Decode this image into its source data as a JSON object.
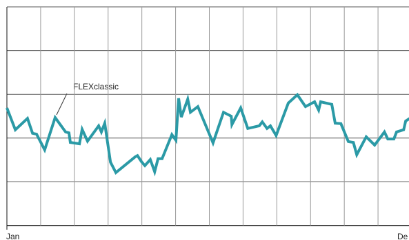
{
  "chart_data": {
    "type": "line",
    "annotation": "FLEXclassic",
    "x_end_labels": [
      "Jan",
      "De"
    ],
    "xlim": [
      0,
      12
    ],
    "xticks": [
      0,
      1,
      2,
      3,
      4,
      5,
      6,
      7,
      8,
      9,
      10,
      11,
      12
    ],
    "ylim": [
      0,
      5
    ],
    "yticks": [
      0,
      1,
      2,
      3,
      4,
      5
    ],
    "grid": true,
    "color": "#2b9aa6",
    "x": [
      0,
      0.25,
      0.61,
      0.76,
      0.88,
      1.12,
      1.43,
      1.74,
      1.84,
      1.88,
      2.15,
      2.23,
      2.39,
      2.72,
      2.8,
      2.9,
      3.07,
      3.23,
      3.8,
      3.87,
      3.99,
      4.09,
      4.25,
      4.38,
      4.48,
      4.6,
      4.89,
      5.01,
      5.09,
      5.17,
      5.36,
      5.44,
      5.66,
      6.11,
      6.42,
      6.65,
      6.67,
      6.93,
      7.14,
      7.48,
      7.57,
      7.71,
      7.81,
      7.98,
      8.34,
      8.61,
      8.85,
      9.12,
      9.24,
      9.3,
      9.63,
      9.73,
      9.9,
      10.12,
      10.27,
      10.37,
      10.65,
      10.9,
      11.19,
      11.29,
      11.47,
      11.55,
      11.76,
      11.82,
      11.94
    ],
    "values": [
      2.69,
      2.19,
      2.45,
      2.11,
      2.09,
      1.73,
      2.47,
      2.14,
      2.12,
      1.9,
      1.87,
      2.2,
      1.93,
      2.28,
      2.14,
      2.34,
      1.45,
      1.21,
      1.57,
      1.6,
      1.46,
      1.37,
      1.51,
      1.23,
      1.53,
      1.53,
      2.08,
      1.95,
      2.91,
      2.48,
      2.89,
      2.59,
      2.72,
      1.89,
      2.59,
      2.5,
      2.31,
      2.69,
      2.22,
      2.28,
      2.37,
      2.22,
      2.28,
      2.06,
      2.8,
      2.99,
      2.72,
      2.83,
      2.64,
      2.83,
      2.77,
      2.34,
      2.33,
      1.92,
      1.9,
      1.62,
      2.03,
      1.84,
      2.14,
      1.98,
      1.98,
      2.14,
      2.19,
      2.39,
      2.45
    ]
  }
}
